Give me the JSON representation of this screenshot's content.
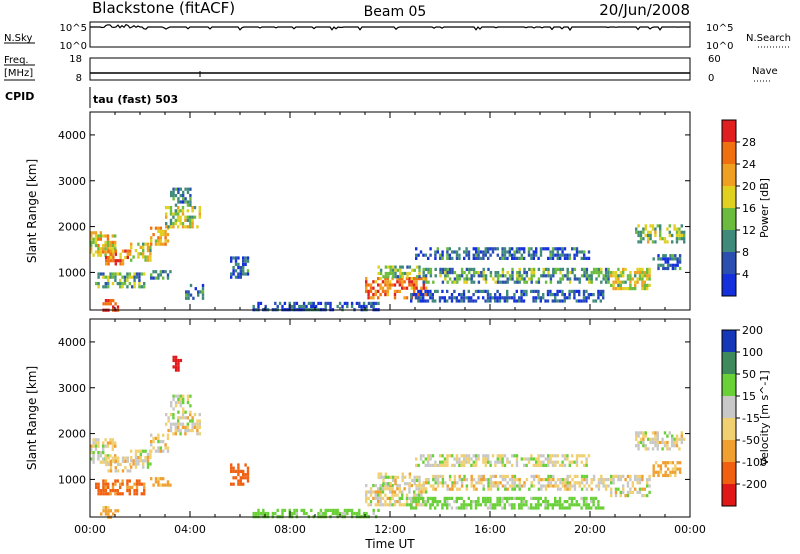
{
  "header": {
    "station": "Blackstone (fitACF)",
    "beam": "Beam 05",
    "date": "20/Jun/2008"
  },
  "top_panels": {
    "nsky_label": "N.Sky",
    "nsky_top_tick": "10^5",
    "nsky_bottom_tick": "10^0",
    "nsearch_label": "N.Search",
    "nsearch_top_tick": "10^5",
    "nsearch_bottom_tick": "10^0",
    "freq_label_1": "Freq.",
    "freq_label_2": "[MHz]",
    "freq_ticks": [
      "18",
      "8"
    ],
    "nave_label": "Nave",
    "nave_ticks": [
      "60",
      "0"
    ],
    "cpid_label": "CPID",
    "cpid_text": "tau (fast) 503"
  },
  "colors": {
    "power": [
      "#1430dc",
      "#2a4fb0",
      "#3f8a7a",
      "#6abb3e",
      "#e0d020",
      "#f0a020",
      "#f07010",
      "#e02020"
    ],
    "velocity": [
      "#e01818",
      "#f06010",
      "#f0a030",
      "#f0d070",
      "#c8c8c8",
      "#6ad038",
      "#3f8a5a",
      "#1438b8"
    ]
  },
  "chart_data": [
    {
      "type": "heatmap",
      "name": "power-panel",
      "ylabel": "Slant Range [km]",
      "xlim": [
        0,
        24
      ],
      "ylim": [
        180,
        4500
      ],
      "yticks": [
        1000,
        2000,
        3000,
        4000
      ],
      "colorbar_label": "Power [dB]",
      "colorbar_ticks": [
        "4",
        "8",
        "12",
        "16",
        "20",
        "24",
        "28"
      ],
      "colorbar_range": [
        0,
        30
      ],
      "regions": [
        {
          "t": [
            0.0,
            1.0
          ],
          "r": [
            1400,
            1900
          ],
          "value": 18
        },
        {
          "t": [
            0.6,
            1.6
          ],
          "r": [
            1200,
            1500
          ],
          "value": 22
        },
        {
          "t": [
            1.6,
            2.4
          ],
          "r": [
            1300,
            1650
          ],
          "value": 16
        },
        {
          "t": [
            2.4,
            3.1
          ],
          "r": [
            1600,
            2000
          ],
          "value": 20
        },
        {
          "t": [
            3.0,
            4.4
          ],
          "r": [
            2000,
            2450
          ],
          "value": 16
        },
        {
          "t": [
            3.2,
            4.0
          ],
          "r": [
            2500,
            2850
          ],
          "value": 8
        },
        {
          "t": [
            0.2,
            2.2
          ],
          "r": [
            700,
            1000
          ],
          "value": 12
        },
        {
          "t": [
            2.4,
            3.2
          ],
          "r": [
            850,
            1050
          ],
          "value": 8
        },
        {
          "t": [
            5.6,
            6.3
          ],
          "r": [
            900,
            1350
          ],
          "value": 6
        },
        {
          "t": [
            0.4,
            1.1
          ],
          "r": [
            200,
            420
          ],
          "value": 28
        },
        {
          "t": [
            3.8,
            4.5
          ],
          "r": [
            450,
            750
          ],
          "value": 6
        },
        {
          "t": [
            6.5,
            11.5
          ],
          "r": [
            180,
            360
          ],
          "value": 5
        },
        {
          "t": [
            11.0,
            13.4
          ],
          "r": [
            450,
            900
          ],
          "value": 24
        },
        {
          "t": [
            11.5,
            13.2
          ],
          "r": [
            900,
            1150
          ],
          "value": 12
        },
        {
          "t": [
            13.3,
            20.7
          ],
          "r": [
            800,
            1100
          ],
          "value": 10
        },
        {
          "t": [
            13.0,
            20.0
          ],
          "r": [
            1300,
            1550
          ],
          "value": 6
        },
        {
          "t": [
            12.8,
            20.5
          ],
          "r": [
            400,
            620
          ],
          "value": 5
        },
        {
          "t": [
            20.8,
            22.4
          ],
          "r": [
            650,
            1100
          ],
          "value": 16
        },
        {
          "t": [
            21.8,
            23.8
          ],
          "r": [
            1700,
            2050
          ],
          "value": 14
        },
        {
          "t": [
            22.5,
            23.6
          ],
          "r": [
            1100,
            1400
          ],
          "value": 6
        }
      ]
    },
    {
      "type": "heatmap",
      "name": "velocity-panel",
      "xlabel": "Time UT",
      "ylabel": "Slant Range [km]",
      "xlim": [
        0,
        24
      ],
      "ylim": [
        180,
        4500
      ],
      "yticks": [
        1000,
        2000,
        3000,
        4000
      ],
      "xticks": [
        "00:00",
        "04:00",
        "08:00",
        "12:00",
        "16:00",
        "20:00",
        "00:00"
      ],
      "colorbar_label": "Velocity [m s^-1]",
      "colorbar_ticks": [
        "-200",
        "-100",
        "-50",
        "-15",
        "15",
        "50",
        "100",
        "200"
      ],
      "regions": [
        {
          "t": [
            0.0,
            1.0
          ],
          "r": [
            1400,
            1900
          ],
          "value": 0
        },
        {
          "t": [
            0.6,
            1.6
          ],
          "r": [
            1200,
            1500
          ],
          "value": -5
        },
        {
          "t": [
            1.6,
            2.4
          ],
          "r": [
            1300,
            1650
          ],
          "value": 0
        },
        {
          "t": [
            2.4,
            3.1
          ],
          "r": [
            1600,
            2000
          ],
          "value": 0
        },
        {
          "t": [
            3.0,
            4.4
          ],
          "r": [
            2000,
            2450
          ],
          "value": 0
        },
        {
          "t": [
            3.2,
            4.0
          ],
          "r": [
            2500,
            2850
          ],
          "value": 5
        },
        {
          "t": [
            0.2,
            2.2
          ],
          "r": [
            700,
            1000
          ],
          "value": -60
        },
        {
          "t": [
            2.4,
            3.2
          ],
          "r": [
            850,
            1050
          ],
          "value": -30
        },
        {
          "t": [
            5.6,
            6.3
          ],
          "r": [
            900,
            1350
          ],
          "value": -80
        },
        {
          "t": [
            3.3,
            3.6
          ],
          "r": [
            3400,
            3700
          ],
          "value": -250
        },
        {
          "t": [
            0.4,
            1.1
          ],
          "r": [
            200,
            420
          ],
          "value": -30
        },
        {
          "t": [
            6.5,
            11.5
          ],
          "r": [
            180,
            360
          ],
          "value": 30
        },
        {
          "t": [
            11.0,
            13.4
          ],
          "r": [
            450,
            900
          ],
          "value": 0
        },
        {
          "t": [
            11.5,
            13.2
          ],
          "r": [
            900,
            1150
          ],
          "value": 0
        },
        {
          "t": [
            13.3,
            20.7
          ],
          "r": [
            800,
            1100
          ],
          "value": 0
        },
        {
          "t": [
            13.0,
            20.0
          ],
          "r": [
            1300,
            1550
          ],
          "value": 5
        },
        {
          "t": [
            12.8,
            20.5
          ],
          "r": [
            400,
            620
          ],
          "value": 30
        },
        {
          "t": [
            20.8,
            22.4
          ],
          "r": [
            650,
            1100
          ],
          "value": 0
        },
        {
          "t": [
            21.8,
            23.8
          ],
          "r": [
            1700,
            2050
          ],
          "value": 0
        },
        {
          "t": [
            22.5,
            23.6
          ],
          "r": [
            1100,
            1400
          ],
          "value": -20
        }
      ]
    }
  ]
}
